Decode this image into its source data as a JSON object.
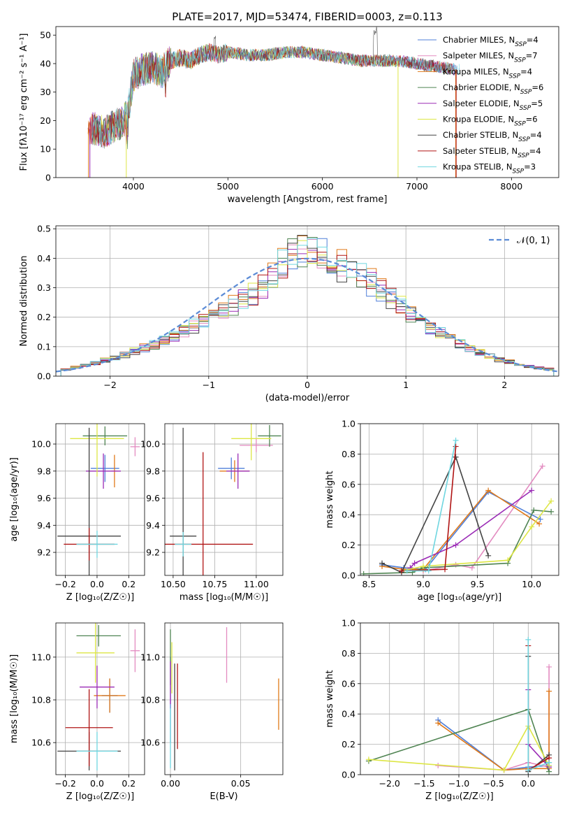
{
  "title": "PLATE=2017, MJD=53474, FIBERID=0003, z=0.113",
  "colors": {
    "Chabrier MILES": "#4f7fd9",
    "Salpeter MILES": "#e38bc0",
    "Kroupa MILES": "#e07a1a",
    "Chabrier ELODIE": "#4f8452",
    "Salpeter ELODIE": "#9b2cb6",
    "Kroupa ELODIE": "#dde645",
    "Chabrier STELIB": "#444444",
    "Salpeter STELIB": "#b01414",
    "Kroupa STELIB": "#6fd6e0"
  },
  "chart_data": [
    {
      "type": "line",
      "panel": "spectrum",
      "xlabel": "wavelength [Angstrom, rest frame]",
      "ylabel": "Flux [fλ10⁻¹⁷ erg cm⁻² s⁻¹ A⁻¹]",
      "xlim": [
        3180,
        8500
      ],
      "ylim": [
        0,
        53
      ],
      "xticks": [
        4000,
        5000,
        6000,
        7000,
        8000
      ],
      "yticks": [
        0,
        10,
        20,
        30,
        40,
        50
      ],
      "legend_position": "top-right",
      "series": [
        {
          "name": "Chabrier MILES, N_SSP=4"
        },
        {
          "name": "Salpeter MILES, N_SSP=7"
        },
        {
          "name": "Kroupa MILES, N_SSP=4"
        },
        {
          "name": "Chabrier ELODIE, N_SSP=6"
        },
        {
          "name": "Salpeter ELODIE, N_SSP=5"
        },
        {
          "name": "Kroupa ELODIE, N_SSP=6"
        },
        {
          "name": "Chabrier STELIB, N_SSP=4"
        },
        {
          "name": "Salpeter STELIB, N_SSP=4"
        },
        {
          "name": "Kroupa STELIB, N_SSP=3"
        }
      ],
      "continuum": {
        "x": [
          3600,
          3700,
          3800,
          3900,
          3950,
          4000,
          4100,
          4200,
          4300,
          4400,
          4500,
          4600,
          4700,
          4800,
          4900,
          5000,
          5200,
          5400,
          5600,
          5800,
          6000,
          6200,
          6400,
          6600,
          6800,
          7000,
          7200,
          7400
        ],
        "y": [
          17,
          16,
          18,
          20,
          24,
          36,
          38,
          39,
          37,
          41,
          42,
          41,
          43,
          44,
          43,
          44,
          43,
          43,
          44,
          44,
          43,
          42,
          41,
          41,
          41,
          40,
          39,
          38
        ]
      }
    },
    {
      "type": "line",
      "panel": "residuals",
      "xlabel": "(data-model)/error",
      "ylabel": "Normed distribution",
      "xlim": [
        -2.55,
        2.55
      ],
      "ylim": [
        0,
        0.51
      ],
      "xticks": [
        -2,
        -1,
        0,
        1,
        2
      ],
      "yticks": [
        0.0,
        0.1,
        0.2,
        0.3,
        0.4,
        0.5
      ],
      "legend_position": "top-right",
      "legend_label": "𝒩(0, 1)",
      "bin_edges": [
        -2.5,
        -2.4,
        -2.3,
        -2.2,
        -2.1,
        -2.0,
        -1.9,
        -1.8,
        -1.7,
        -1.6,
        -1.5,
        -1.4,
        -1.3,
        -1.2,
        -1.1,
        -1.0,
        -0.9,
        -0.8,
        -0.7,
        -0.6,
        -0.5,
        -0.4,
        -0.3,
        -0.2,
        -0.1,
        0.0,
        0.1,
        0.2,
        0.3,
        0.4,
        0.5,
        0.6,
        0.7,
        0.8,
        0.9,
        1.0,
        1.1,
        1.2,
        1.3,
        1.4,
        1.5,
        1.6,
        1.7,
        1.8,
        1.9,
        2.0,
        2.1,
        2.2,
        2.3,
        2.4,
        2.5
      ],
      "hist_heights": [
        0.022,
        0.03,
        0.036,
        0.045,
        0.053,
        0.062,
        0.072,
        0.083,
        0.095,
        0.108,
        0.122,
        0.136,
        0.152,
        0.168,
        0.185,
        0.204,
        0.222,
        0.24,
        0.258,
        0.278,
        0.304,
        0.334,
        0.38,
        0.42,
        0.44,
        0.43,
        0.42,
        0.4,
        0.38,
        0.36,
        0.34,
        0.315,
        0.29,
        0.262,
        0.238,
        0.214,
        0.19,
        0.168,
        0.148,
        0.128,
        0.11,
        0.094,
        0.08,
        0.068,
        0.057,
        0.048,
        0.04,
        0.033,
        0.028,
        0.024
      ],
      "normal": {
        "mean": 0,
        "sigma": 1
      }
    },
    {
      "type": "scatter",
      "panel": "age_vs_Z",
      "xlabel": "Z [log₁₀(Z/Z☉)]",
      "ylabel": "age  [log₁₀(age/yr)]",
      "xlim": [
        -0.26,
        0.3
      ],
      "ylim": [
        9.03,
        10.15
      ],
      "xticks": [
        -0.2,
        0.0,
        0.2
      ],
      "yticks": [
        9.2,
        9.4,
        9.6,
        9.8,
        10.0
      ],
      "points": [
        {
          "series": "Chabrier MILES",
          "x": 0.05,
          "y": 9.82,
          "xerr": 0.09,
          "yerr": 0.1
        },
        {
          "series": "Salpeter MILES",
          "x": 0.24,
          "y": 9.98,
          "xerr": 0.03,
          "yerr": 0.07
        },
        {
          "series": "Kroupa MILES",
          "x": 0.11,
          "y": 9.8,
          "xerr": 0.02,
          "yerr": 0.12
        },
        {
          "series": "Chabrier ELODIE",
          "x": 0.05,
          "y": 10.06,
          "xerr": 0.14,
          "yerr": 0.07
        },
        {
          "series": "Salpeter ELODIE",
          "x": 0.04,
          "y": 9.8,
          "xerr": 0.11,
          "yerr": 0.13
        },
        {
          "series": "Kroupa ELODIE",
          "x": 0.0,
          "y": 10.04,
          "xerr": 0.17,
          "yerr": 0.28
        },
        {
          "series": "Chabrier STELIB",
          "x": -0.05,
          "y": 9.32,
          "xerr": 0.2,
          "yerr": 0.8
        },
        {
          "series": "Salpeter STELIB",
          "x": -0.05,
          "y": 9.26,
          "xerr": 0.16,
          "yerr": 0.12
        },
        {
          "series": "Kroupa STELIB",
          "x": 0.0,
          "y": 9.26,
          "xerr": 0.13,
          "yerr": 0.1
        }
      ]
    },
    {
      "type": "scatter",
      "panel": "age_vs_mass",
      "xlabel": "mass [log₁₀(M/M☉)]",
      "ylabel": "",
      "xlim": [
        10.45,
        11.16
      ],
      "ylim": [
        9.03,
        10.15
      ],
      "xticks": [
        10.5,
        10.75,
        11.0
      ],
      "yticks": [
        9.2,
        9.4,
        9.6,
        9.8,
        10.0
      ],
      "points": [
        {
          "series": "Chabrier MILES",
          "x": 10.85,
          "y": 9.82,
          "xerr": 0.08,
          "yerr": 0.08
        },
        {
          "series": "Salpeter MILES",
          "x": 11.0,
          "y": 9.99,
          "xerr": 0.1,
          "yerr": 0.05
        },
        {
          "series": "Kroupa MILES",
          "x": 10.87,
          "y": 9.8,
          "xerr": 0.09,
          "yerr": 0.08
        },
        {
          "series": "Chabrier ELODIE",
          "x": 11.08,
          "y": 10.06,
          "xerr": 0.07,
          "yerr": 0.08
        },
        {
          "series": "Salpeter ELODIE",
          "x": 10.89,
          "y": 9.8,
          "xerr": 0.07,
          "yerr": 0.13
        },
        {
          "series": "Kroupa ELODIE",
          "x": 10.97,
          "y": 10.04,
          "xerr": 0.12,
          "yerr": 0.16
        },
        {
          "series": "Chabrier STELIB",
          "x": 10.56,
          "y": 9.32,
          "xerr": 0.08,
          "yerr": 0.8
        },
        {
          "series": "Salpeter STELIB",
          "x": 10.68,
          "y": 9.26,
          "xerr": 0.3,
          "yerr": 0.68
        },
        {
          "series": "Kroupa STELIB",
          "x": 10.56,
          "y": 9.26,
          "xerr": 0.05,
          "yerr": 0.09
        }
      ]
    },
    {
      "type": "line",
      "panel": "mass_weight_vs_age",
      "xlabel": "age  [log₁₀(age/yr)]",
      "ylabel": "mass weight",
      "xlim": [
        8.42,
        10.25
      ],
      "ylim": [
        0,
        1.0
      ],
      "xticks": [
        8.5,
        9.0,
        9.5,
        10.0
      ],
      "yticks": [
        0.0,
        0.2,
        0.4,
        0.6,
        0.8,
        1.0
      ],
      "series": [
        {
          "name": "Chabrier MILES",
          "x": [
            8.62,
            8.82,
            9.02,
            9.6,
            10.08
          ],
          "y": [
            0.07,
            0.05,
            0.04,
            0.55,
            0.37
          ]
        },
        {
          "name": "Salpeter MILES",
          "x": [
            8.85,
            9.0,
            9.3,
            9.45,
            10.1
          ],
          "y": [
            0.04,
            0.03,
            0.07,
            0.05,
            0.72
          ]
        },
        {
          "name": "Kroupa MILES",
          "x": [
            8.62,
            8.82,
            9.0,
            9.6,
            10.07
          ],
          "y": [
            0.06,
            0.04,
            0.04,
            0.56,
            0.34
          ]
        },
        {
          "name": "Chabrier ELODIE",
          "x": [
            8.45,
            8.9,
            9.0,
            9.78,
            10.02,
            10.18
          ],
          "y": [
            0.01,
            0.02,
            0.05,
            0.08,
            0.43,
            0.42
          ]
        },
        {
          "name": "Salpeter ELODIE",
          "x": [
            8.88,
            8.92,
            9.3,
            10.0
          ],
          "y": [
            0.05,
            0.08,
            0.2,
            0.56
          ]
        },
        {
          "name": "Kroupa ELODIE",
          "x": [
            8.8,
            9.0,
            9.78,
            10.0,
            10.18
          ],
          "y": [
            0.03,
            0.06,
            0.1,
            0.32,
            0.49
          ]
        },
        {
          "name": "Chabrier STELIB",
          "x": [
            8.62,
            8.8,
            9.3,
            9.6
          ],
          "y": [
            0.08,
            0.02,
            0.78,
            0.13
          ]
        },
        {
          "name": "Salpeter STELIB",
          "x": [
            8.8,
            9.2,
            9.3
          ],
          "y": [
            0.03,
            0.04,
            0.85
          ]
        },
        {
          "name": "Kroupa STELIB",
          "x": [
            8.85,
            9.05,
            9.3
          ],
          "y": [
            0.03,
            0.03,
            0.89
          ]
        }
      ]
    },
    {
      "type": "scatter",
      "panel": "mass_vs_Z",
      "xlabel": "Z [log₁₀(Z/Z☉)]",
      "ylabel": "mass [log₁₀(M/M☉)]",
      "xlim": [
        -0.26,
        0.3
      ],
      "ylim": [
        10.45,
        11.16
      ],
      "xticks": [
        -0.2,
        0.0,
        0.2
      ],
      "yticks": [
        10.6,
        10.8,
        11.0
      ],
      "points": [
        {
          "series": "Chabrier MILES",
          "x": 0.08,
          "y": 10.82,
          "xerr": 0.05,
          "yerr": 0.08
        },
        {
          "series": "Salpeter MILES",
          "x": 0.24,
          "y": 11.03,
          "xerr": 0.03,
          "yerr": 0.1
        },
        {
          "series": "Kroupa MILES",
          "x": 0.08,
          "y": 10.82,
          "xerr": 0.1,
          "yerr": 0.08
        },
        {
          "series": "Chabrier ELODIE",
          "x": 0.01,
          "y": 11.1,
          "xerr": 0.14,
          "yerr": 0.05
        },
        {
          "series": "Salpeter ELODIE",
          "x": 0.0,
          "y": 10.86,
          "xerr": 0.11,
          "yerr": 0.1
        },
        {
          "series": "Kroupa ELODIE",
          "x": -0.01,
          "y": 11.02,
          "xerr": 0.12,
          "yerr": 0.14
        },
        {
          "series": "Chabrier STELIB",
          "x": -0.05,
          "y": 10.56,
          "xerr": 0.2,
          "yerr": 0.09
        },
        {
          "series": "Salpeter STELIB",
          "x": -0.05,
          "y": 10.67,
          "xerr": 0.15,
          "yerr": 0.18
        },
        {
          "series": "Kroupa STELIB",
          "x": 0.0,
          "y": 10.56,
          "xerr": 0.13,
          "yerr": 0.09
        }
      ]
    },
    {
      "type": "scatter",
      "panel": "mass_vs_EBV",
      "xlabel": "E(B-V)",
      "ylabel": "",
      "xlim": [
        -0.004,
        0.08
      ],
      "ylim": [
        10.45,
        11.16
      ],
      "xticks": [
        0.0,
        0.05
      ],
      "yticks": [
        10.6,
        10.8,
        11.0
      ],
      "points": [
        {
          "series": "Chabrier MILES",
          "x": 0.0,
          "y": 10.8,
          "xerr": 0,
          "yerr": 0.2
        },
        {
          "series": "Salpeter MILES",
          "x": 0.04,
          "y": 11.01,
          "xerr": 0,
          "yerr": 0.13
        },
        {
          "series": "Kroupa MILES",
          "x": 0.077,
          "y": 10.78,
          "xerr": 0,
          "yerr": 0.12
        },
        {
          "series": "Chabrier ELODIE",
          "x": 0.0,
          "y": 11.0,
          "xerr": 0,
          "yerr": 0.13
        },
        {
          "series": "Salpeter ELODIE",
          "x": 0.0,
          "y": 10.88,
          "xerr": 0,
          "yerr": 0.1
        },
        {
          "series": "Kroupa ELODIE",
          "x": 0.001,
          "y": 10.95,
          "xerr": 0,
          "yerr": 0.12
        },
        {
          "series": "Chabrier STELIB",
          "x": 0.003,
          "y": 10.72,
          "xerr": 0,
          "yerr": 0.25
        },
        {
          "series": "Salpeter STELIB",
          "x": 0.005,
          "y": 10.77,
          "xerr": 0,
          "yerr": 0.2
        },
        {
          "series": "Kroupa STELIB",
          "x": 0.0,
          "y": 10.62,
          "xerr": 0,
          "yerr": 0.14
        }
      ]
    },
    {
      "type": "line",
      "panel": "mass_weight_vs_Z",
      "xlabel": "Z [log₁₀(Z/Z☉)]",
      "ylabel": "mass weight",
      "xlim": [
        -2.42,
        0.44
      ],
      "ylim": [
        0,
        1.0
      ],
      "xticks": [
        -2.0,
        -1.5,
        -1.0,
        -0.5,
        0.0
      ],
      "yticks": [
        0.0,
        0.2,
        0.4,
        0.6,
        0.8,
        1.0
      ],
      "series": [
        {
          "name": "Chabrier MILES",
          "x": [
            -1.3,
            -0.35,
            0.0,
            0.3
          ],
          "y": [
            0.36,
            0.03,
            0.05,
            0.06
          ]
        },
        {
          "name": "Salpeter MILES",
          "x": [
            -1.3,
            -0.35,
            0.0,
            0.3,
            0.3
          ],
          "y": [
            0.06,
            0.03,
            0.08,
            0.05,
            0.71
          ]
        },
        {
          "name": "Kroupa MILES",
          "x": [
            -1.3,
            -0.35,
            0.0,
            0.3,
            0.3
          ],
          "y": [
            0.34,
            0.03,
            0.04,
            0.04,
            0.55
          ]
        },
        {
          "name": "Chabrier ELODIE",
          "x": [
            -2.3,
            0.0,
            0.3,
            0.3
          ],
          "y": [
            0.09,
            0.43,
            0.02,
            0.08
          ]
        },
        {
          "name": "Salpeter ELODIE",
          "x": [
            0.0,
            0.0,
            0.3
          ],
          "y": [
            0.56,
            0.2,
            0.05
          ]
        },
        {
          "name": "Kroupa ELODIE",
          "x": [
            -2.3,
            -0.35,
            0.0,
            0.3
          ],
          "y": [
            0.1,
            0.03,
            0.32,
            0.06
          ]
        },
        {
          "name": "Chabrier STELIB",
          "x": [
            0.0,
            0.0,
            0.3
          ],
          "y": [
            0.78,
            0.02,
            0.13
          ]
        },
        {
          "name": "Salpeter STELIB",
          "x": [
            0.0,
            0.0,
            0.3
          ],
          "y": [
            0.85,
            0.03,
            0.11
          ]
        },
        {
          "name": "Kroupa STELIB",
          "x": [
            0.0,
            0.0,
            0.3
          ],
          "y": [
            0.89,
            0.03,
            0.08
          ]
        }
      ]
    }
  ]
}
